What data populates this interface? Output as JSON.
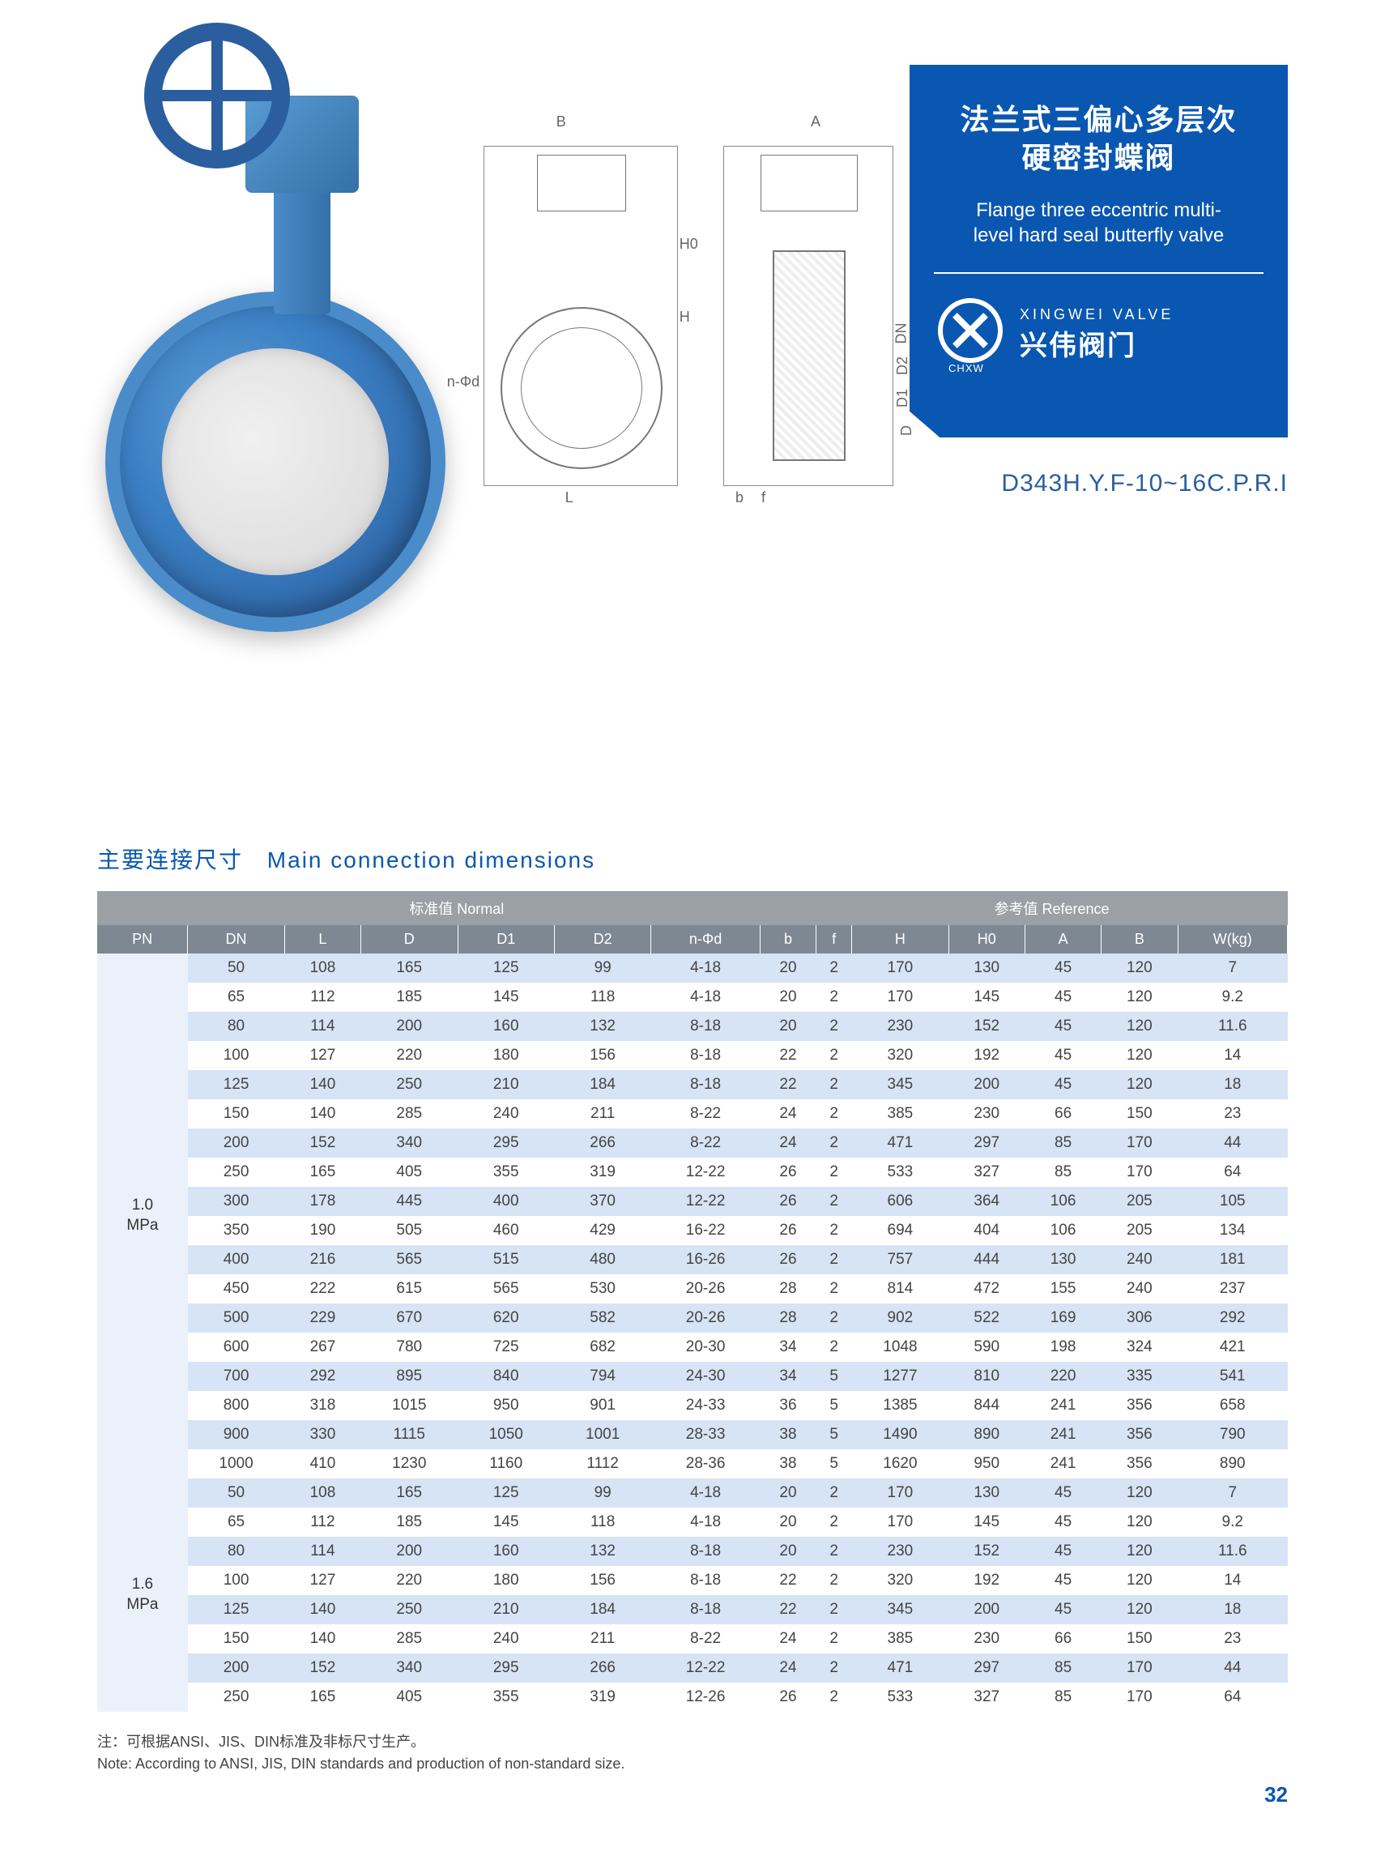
{
  "title_panel": {
    "title_cn": "法兰式三偏心多层次\n硬密封蝶阀",
    "title_en": "Flange three eccentric multi-\nlevel hard seal butterfly valve",
    "brand_sub": "CHXW",
    "brand_en": "XINGWEI VALVE",
    "brand_cn": "兴伟阀门",
    "panel_bg": "#0a57b1"
  },
  "model_code": "D343H.Y.F-10~16C.P.R.I",
  "drawing_labels": {
    "B": "B",
    "A": "A",
    "H": "H",
    "H0": "H0",
    "nphd": "n-Φd",
    "b": "b",
    "f": "f",
    "DN": "DN",
    "D2": "D2",
    "D1": "D1",
    "D": "D",
    "L": "L"
  },
  "section": {
    "cn": "主要连接尺寸",
    "en": "Main connection  dimensions"
  },
  "table": {
    "group_headers": {
      "left_span": 8,
      "left_label": "标准值 Normal",
      "right_span": 6,
      "right_label": "参考值 Reference"
    },
    "columns": [
      "PN",
      "DN",
      "L",
      "D",
      "D1",
      "D2",
      "n-Φd",
      "b",
      "f",
      "H",
      "H0",
      "A",
      "B",
      "W(kg)"
    ],
    "header_bg_group": "#9aa0a6",
    "header_bg_cols": "#7d8893",
    "row_alt_color": "#d6e4f5",
    "row_base_color": "#ffffff",
    "pn_cell_bg": "#eaf1fb",
    "groups": [
      {
        "pn": "1.0\nMPa",
        "rows": [
          [
            "50",
            "108",
            "165",
            "125",
            "99",
            "4-18",
            "20",
            "2",
            "170",
            "130",
            "45",
            "120",
            "7"
          ],
          [
            "65",
            "112",
            "185",
            "145",
            "118",
            "4-18",
            "20",
            "2",
            "170",
            "145",
            "45",
            "120",
            "9.2"
          ],
          [
            "80",
            "114",
            "200",
            "160",
            "132",
            "8-18",
            "20",
            "2",
            "230",
            "152",
            "45",
            "120",
            "11.6"
          ],
          [
            "100",
            "127",
            "220",
            "180",
            "156",
            "8-18",
            "22",
            "2",
            "320",
            "192",
            "45",
            "120",
            "14"
          ],
          [
            "125",
            "140",
            "250",
            "210",
            "184",
            "8-18",
            "22",
            "2",
            "345",
            "200",
            "45",
            "120",
            "18"
          ],
          [
            "150",
            "140",
            "285",
            "240",
            "211",
            "8-22",
            "24",
            "2",
            "385",
            "230",
            "66",
            "150",
            "23"
          ],
          [
            "200",
            "152",
            "340",
            "295",
            "266",
            "8-22",
            "24",
            "2",
            "471",
            "297",
            "85",
            "170",
            "44"
          ],
          [
            "250",
            "165",
            "405",
            "355",
            "319",
            "12-22",
            "26",
            "2",
            "533",
            "327",
            "85",
            "170",
            "64"
          ],
          [
            "300",
            "178",
            "445",
            "400",
            "370",
            "12-22",
            "26",
            "2",
            "606",
            "364",
            "106",
            "205",
            "105"
          ],
          [
            "350",
            "190",
            "505",
            "460",
            "429",
            "16-22",
            "26",
            "2",
            "694",
            "404",
            "106",
            "205",
            "134"
          ],
          [
            "400",
            "216",
            "565",
            "515",
            "480",
            "16-26",
            "26",
            "2",
            "757",
            "444",
            "130",
            "240",
            "181"
          ],
          [
            "450",
            "222",
            "615",
            "565",
            "530",
            "20-26",
            "28",
            "2",
            "814",
            "472",
            "155",
            "240",
            "237"
          ],
          [
            "500",
            "229",
            "670",
            "620",
            "582",
            "20-26",
            "28",
            "2",
            "902",
            "522",
            "169",
            "306",
            "292"
          ],
          [
            "600",
            "267",
            "780",
            "725",
            "682",
            "20-30",
            "34",
            "2",
            "1048",
            "590",
            "198",
            "324",
            "421"
          ],
          [
            "700",
            "292",
            "895",
            "840",
            "794",
            "24-30",
            "34",
            "5",
            "1277",
            "810",
            "220",
            "335",
            "541"
          ],
          [
            "800",
            "318",
            "1015",
            "950",
            "901",
            "24-33",
            "36",
            "5",
            "1385",
            "844",
            "241",
            "356",
            "658"
          ],
          [
            "900",
            "330",
            "1115",
            "1050",
            "1001",
            "28-33",
            "38",
            "5",
            "1490",
            "890",
            "241",
            "356",
            "790"
          ],
          [
            "1000",
            "410",
            "1230",
            "1160",
            "1112",
            "28-36",
            "38",
            "5",
            "1620",
            "950",
            "241",
            "356",
            "890"
          ]
        ]
      },
      {
        "pn": "1.6\nMPa",
        "rows": [
          [
            "50",
            "108",
            "165",
            "125",
            "99",
            "4-18",
            "20",
            "2",
            "170",
            "130",
            "45",
            "120",
            "7"
          ],
          [
            "65",
            "112",
            "185",
            "145",
            "118",
            "4-18",
            "20",
            "2",
            "170",
            "145",
            "45",
            "120",
            "9.2"
          ],
          [
            "80",
            "114",
            "200",
            "160",
            "132",
            "8-18",
            "20",
            "2",
            "230",
            "152",
            "45",
            "120",
            "11.6"
          ],
          [
            "100",
            "127",
            "220",
            "180",
            "156",
            "8-18",
            "22",
            "2",
            "320",
            "192",
            "45",
            "120",
            "14"
          ],
          [
            "125",
            "140",
            "250",
            "210",
            "184",
            "8-18",
            "22",
            "2",
            "345",
            "200",
            "45",
            "120",
            "18"
          ],
          [
            "150",
            "140",
            "285",
            "240",
            "211",
            "8-22",
            "24",
            "2",
            "385",
            "230",
            "66",
            "150",
            "23"
          ],
          [
            "200",
            "152",
            "340",
            "295",
            "266",
            "12-22",
            "24",
            "2",
            "471",
            "297",
            "85",
            "170",
            "44"
          ],
          [
            "250",
            "165",
            "405",
            "355",
            "319",
            "12-26",
            "26",
            "2",
            "533",
            "327",
            "85",
            "170",
            "64"
          ]
        ]
      }
    ]
  },
  "footnote": {
    "cn": "注：可根据ANSI、JIS、DIN标准及非标尺寸生产。",
    "en": "Note: According to ANSI, JIS, DIN standards and production of non-standard size."
  },
  "page_number": "32",
  "colors": {
    "brand_blue": "#0a57b1",
    "text_gray": "#444444"
  }
}
